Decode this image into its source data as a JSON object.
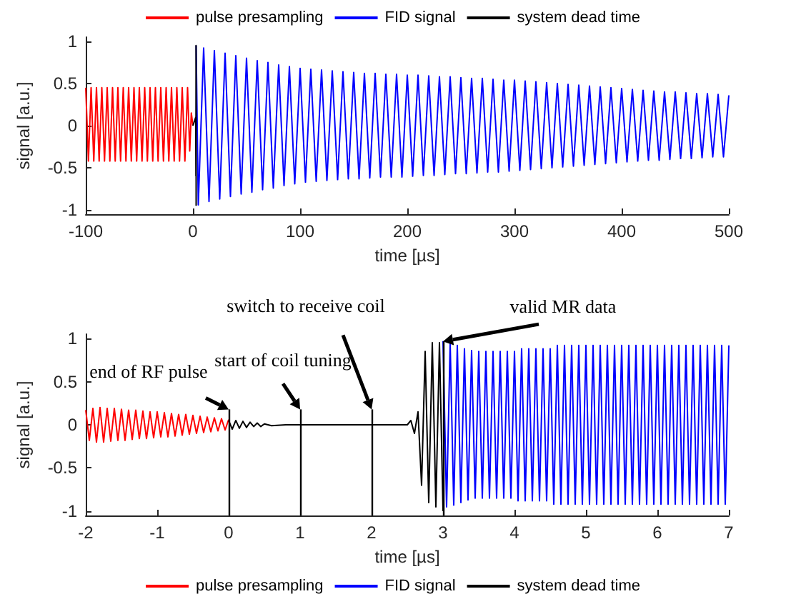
{
  "chart_data": [
    {
      "type": "line",
      "xlabel": "time [µs]",
      "ylabel": "signal [a.u.]",
      "xlim": [
        -100,
        500
      ],
      "xticks": [
        -100,
        0,
        100,
        200,
        300,
        400,
        500
      ],
      "ylim": [
        -1.05,
        1.05
      ],
      "yticks": [
        -1,
        -0.5,
        0,
        0.5,
        1
      ],
      "grid": false,
      "legend": "top",
      "marker": "none",
      "line_style": "solid",
      "series": [
        {
          "name": "pulse presampling",
          "color": "#ff0000",
          "x": [
            -100,
            -97.5,
            -95,
            -92.5,
            -90,
            -87.5,
            -85,
            -82.5,
            -80,
            -77.5,
            -75,
            -72.5,
            -70,
            -67.5,
            -65,
            -62.5,
            -60,
            -57.5,
            -55,
            -52.5,
            -50,
            -47.5,
            -45,
            -42.5,
            -40,
            -37.5,
            -35,
            -32.5,
            -30,
            -27.5,
            -25,
            -22.5,
            -20,
            -17.5,
            -15,
            -12.5,
            -10,
            -7.5,
            -5,
            -3,
            -1.5,
            0
          ],
          "values": [
            0.45,
            -0.42,
            0.45,
            -0.42,
            0.45,
            -0.42,
            0.45,
            -0.42,
            0.45,
            -0.42,
            0.45,
            -0.42,
            0.45,
            -0.42,
            0.45,
            -0.42,
            0.45,
            -0.42,
            0.45,
            -0.42,
            0.45,
            -0.42,
            0.45,
            -0.42,
            0.45,
            -0.42,
            0.45,
            -0.42,
            0.45,
            -0.42,
            0.45,
            -0.42,
            0.45,
            -0.42,
            0.45,
            -0.42,
            0.45,
            -0.42,
            0.45,
            -0.3,
            0.15,
            0
          ]
        },
        {
          "name": "FID signal",
          "color": "#0000ff",
          "x": [
            3,
            5,
            10,
            15,
            20,
            25,
            30,
            35,
            40,
            45,
            50,
            55,
            60,
            65,
            70,
            75,
            80,
            85,
            90,
            95,
            100,
            105,
            110,
            115,
            120,
            125,
            130,
            135,
            140,
            145,
            150,
            155,
            160,
            165,
            170,
            175,
            180,
            185,
            190,
            195,
            200,
            205,
            210,
            215,
            220,
            225,
            230,
            235,
            240,
            245,
            250,
            255,
            260,
            265,
            270,
            275,
            280,
            285,
            290,
            295,
            300,
            305,
            310,
            315,
            320,
            325,
            330,
            335,
            340,
            345,
            350,
            355,
            360,
            365,
            370,
            375,
            380,
            385,
            390,
            395,
            400,
            405,
            410,
            415,
            420,
            425,
            430,
            435,
            440,
            445,
            450,
            455,
            460,
            465,
            470,
            475,
            480,
            485,
            490,
            495,
            500
          ],
          "values": [
            0.95,
            -0.94,
            0.92,
            -0.9,
            0.89,
            -0.87,
            0.86,
            -0.84,
            0.83,
            -0.81,
            0.8,
            -0.79,
            0.77,
            -0.76,
            0.75,
            -0.74,
            0.72,
            -0.71,
            0.7,
            -0.69,
            0.68,
            -0.67,
            0.67,
            -0.66,
            0.66,
            -0.65,
            0.65,
            -0.64,
            0.64,
            -0.63,
            0.63,
            -0.63,
            0.62,
            -0.62,
            0.62,
            -0.61,
            0.61,
            -0.61,
            0.61,
            -0.61,
            0.6,
            -0.6,
            0.6,
            -0.59,
            0.59,
            -0.59,
            0.58,
            -0.58,
            0.58,
            -0.57,
            0.57,
            -0.57,
            0.56,
            -0.56,
            0.56,
            -0.55,
            0.55,
            -0.55,
            0.54,
            -0.54,
            0.54,
            -0.53,
            0.53,
            -0.52,
            0.52,
            -0.51,
            0.51,
            -0.5,
            0.5,
            -0.49,
            0.49,
            -0.48,
            0.48,
            -0.47,
            0.47,
            -0.46,
            0.46,
            -0.45,
            0.45,
            -0.44,
            0.44,
            -0.43,
            0.43,
            -0.42,
            0.42,
            -0.41,
            0.41,
            -0.41,
            0.4,
            -0.4,
            0.4,
            -0.39,
            0.39,
            -0.39,
            0.38,
            -0.38,
            0.38,
            -0.37,
            0.37,
            -0.37,
            0.36
          ]
        },
        {
          "name": "system dead time",
          "color": "#000000",
          "x": [
            0,
            2.6,
            2.8,
            2.9,
            3
          ],
          "values": [
            0,
            0.1,
            -0.6,
            0.95,
            -0.95
          ]
        }
      ]
    },
    {
      "type": "line",
      "xlabel": "time [µs]",
      "ylabel": "signal [a.u.]",
      "xlim": [
        -2,
        7
      ],
      "xticks": [
        -2,
        -1,
        0,
        1,
        2,
        3,
        4,
        5,
        6,
        7
      ],
      "ylim": [
        -1.05,
        1.05
      ],
      "yticks": [
        -1,
        -0.5,
        0,
        0.5,
        1
      ],
      "grid": false,
      "legend": "bottom",
      "marker": "none",
      "line_style": "solid",
      "ref_lines": [
        {
          "axis": "x",
          "value": 0,
          "label": "end of RF pulse",
          "color": "#000000"
        },
        {
          "axis": "x",
          "value": 1,
          "label": "start of coil tuning",
          "color": "#000000"
        },
        {
          "axis": "x",
          "value": 2,
          "label": "switch to receive coil",
          "color": "#000000"
        },
        {
          "axis": "x",
          "value": 3,
          "label": "valid MR data",
          "color": "#000000"
        }
      ],
      "series": [
        {
          "name": "pulse presampling",
          "color": "#ff0000",
          "x": [
            -2,
            -1.95,
            -1.9,
            -1.85,
            -1.8,
            -1.75,
            -1.7,
            -1.65,
            -1.6,
            -1.55,
            -1.5,
            -1.45,
            -1.4,
            -1.35,
            -1.3,
            -1.25,
            -1.2,
            -1.15,
            -1.1,
            -1.05,
            -1,
            -0.95,
            -0.9,
            -0.85,
            -0.8,
            -0.75,
            -0.7,
            -0.65,
            -0.6,
            -0.55,
            -0.5,
            -0.45,
            -0.4,
            -0.35,
            -0.3,
            -0.25,
            -0.2,
            -0.15,
            -0.1,
            -0.05,
            0
          ],
          "values": [
            0.17,
            -0.18,
            0.19,
            -0.2,
            0.2,
            -0.2,
            0.19,
            -0.19,
            0.19,
            -0.18,
            0.18,
            -0.18,
            0.17,
            -0.17,
            0.17,
            -0.16,
            0.16,
            -0.16,
            0.15,
            -0.15,
            0.15,
            -0.14,
            0.14,
            -0.14,
            0.13,
            -0.13,
            0.12,
            -0.12,
            0.12,
            -0.11,
            0.11,
            -0.1,
            0.1,
            -0.09,
            0.09,
            -0.08,
            0.08,
            -0.07,
            0.07,
            -0.06,
            0.06
          ]
        },
        {
          "name": "FID signal",
          "color": "#0000ff",
          "x": [
            3,
            3.05,
            3.1,
            3.15,
            3.2,
            3.25,
            3.3,
            3.35,
            3.4,
            3.45,
            3.5,
            3.55,
            3.6,
            3.65,
            3.7,
            3.75,
            3.8,
            3.85,
            3.9,
            3.95,
            4,
            4.05,
            4.1,
            4.15,
            4.2,
            4.25,
            4.3,
            4.35,
            4.4,
            4.45,
            4.5,
            4.55,
            4.6,
            4.65,
            4.7,
            4.75,
            4.8,
            4.85,
            4.9,
            4.95,
            5,
            5.05,
            5.1,
            5.15,
            5.2,
            5.25,
            5.3,
            5.35,
            5.4,
            5.45,
            5.5,
            5.55,
            5.6,
            5.65,
            5.7,
            5.75,
            5.8,
            5.85,
            5.9,
            5.95,
            6,
            6.05,
            6.1,
            6.15,
            6.2,
            6.25,
            6.3,
            6.35,
            6.4,
            6.45,
            6.5,
            6.55,
            6.6,
            6.65,
            6.7,
            6.75,
            6.8,
            6.85,
            6.9,
            6.95,
            7
          ],
          "values": [
            0.97,
            -0.95,
            0.95,
            -0.93,
            0.92,
            -0.9,
            0.88,
            -0.87,
            0.86,
            -0.85,
            0.85,
            -0.85,
            0.85,
            -0.85,
            0.85,
            -0.85,
            0.85,
            -0.85,
            0.85,
            -0.85,
            0.85,
            -0.88,
            0.88,
            -0.88,
            0.88,
            -0.88,
            0.88,
            -0.88,
            0.88,
            -0.88,
            0.88,
            -0.92,
            0.92,
            -0.92,
            0.92,
            -0.92,
            0.92,
            -0.92,
            0.92,
            -0.92,
            0.92,
            -0.92,
            0.92,
            -0.92,
            0.92,
            -0.92,
            0.92,
            -0.92,
            0.92,
            -0.92,
            0.92,
            -0.92,
            0.92,
            -0.92,
            0.92,
            -0.92,
            0.92,
            -0.92,
            0.92,
            -0.92,
            0.92,
            -0.92,
            0.92,
            -0.92,
            0.92,
            -0.92,
            0.92,
            -0.92,
            0.92,
            -0.92,
            0.92,
            -0.92,
            0.92,
            -0.92,
            0.92,
            -0.92,
            0.92,
            -0.92,
            0.92,
            -0.92,
            0.92
          ]
        },
        {
          "name": "system dead time",
          "color": "#000000",
          "x": [
            0,
            0.05,
            0.1,
            0.15,
            0.2,
            0.25,
            0.3,
            0.35,
            0.4,
            0.45,
            0.5,
            0.6,
            0.8,
            1,
            2,
            2.5,
            2.55,
            2.6,
            2.65,
            2.7,
            2.75,
            2.8,
            2.85,
            2.9,
            2.95,
            3
          ],
          "values": [
            0.05,
            -0.05,
            0.05,
            -0.04,
            0.04,
            -0.03,
            0.03,
            -0.02,
            0.02,
            -0.02,
            0.01,
            -0.01,
            0,
            0,
            0,
            0,
            0.05,
            -0.1,
            0.15,
            -0.7,
            0.85,
            -0.9,
            0.95,
            -0.95,
            0.95,
            -1
          ]
        }
      ]
    }
  ]
}
